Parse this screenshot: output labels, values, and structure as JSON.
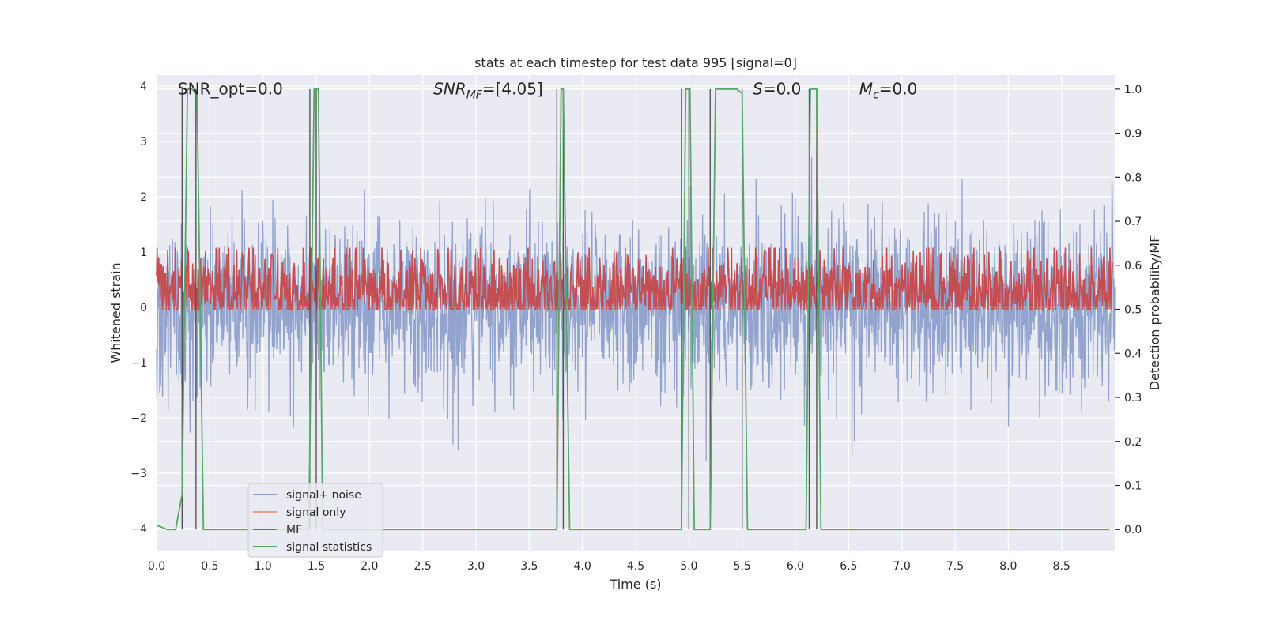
{
  "chart_data": {
    "type": "line",
    "title": "stats at each timestep for test data 995 [signal=0]",
    "xlabel": "Time (s)",
    "ylabel_left": "Whitened strain",
    "ylabel_right": "Detection probability/MF",
    "xlim": [
      0.0,
      9.0
    ],
    "ylim_left": [
      -4.4,
      4.2
    ],
    "ylim_right": [
      -0.048,
      1.032
    ],
    "x_ticks": [
      0.0,
      0.5,
      1.0,
      1.5,
      2.0,
      2.5,
      3.0,
      3.5,
      4.0,
      4.5,
      5.0,
      5.5,
      6.0,
      6.5,
      7.0,
      7.5,
      8.0,
      8.5
    ],
    "x_tick_labels": [
      "0.0",
      "0.5",
      "1.0",
      "1.5",
      "2.0",
      "2.5",
      "3.0",
      "3.5",
      "4.0",
      "4.5",
      "5.0",
      "5.5",
      "6.0",
      "6.5",
      "7.0",
      "7.5",
      "8.0",
      "8.5"
    ],
    "y_left_ticks": [
      -4,
      -3,
      -2,
      -1,
      0,
      1,
      2,
      3,
      4
    ],
    "y_left_tick_labels": [
      "−4",
      "−3",
      "−2",
      "−1",
      "0",
      "1",
      "2",
      "3",
      "4"
    ],
    "y_right_ticks": [
      0.0,
      0.1,
      0.2,
      0.3,
      0.4,
      0.5,
      0.6,
      0.7,
      0.8,
      0.9,
      1.0
    ],
    "y_right_tick_labels": [
      "0.0",
      "0.1",
      "0.2",
      "0.3",
      "0.4",
      "0.5",
      "0.6",
      "0.7",
      "0.8",
      "0.9",
      "1.0"
    ],
    "grid": true,
    "legend_position": "lower-left",
    "annotations": [
      {
        "text": "SNR_opt=0.0",
        "x": 0.2,
        "y": 3.95
      },
      {
        "text": "SNR_MF=[4.05]",
        "x": 2.6,
        "y": 3.95
      },
      {
        "text": "S=0.0",
        "x": 5.6,
        "y": 3.95
      },
      {
        "text": "M_c=0.0",
        "x": 6.6,
        "y": 3.95
      }
    ],
    "series": [
      {
        "name": "signal+ noise",
        "color": "#8da0cb",
        "axis": "left",
        "kind": "noise",
        "std": 0.78,
        "t_start": 0.0,
        "t_end": 9.0
      },
      {
        "name": "signal only",
        "color": "#e8a088",
        "axis": "left",
        "kind": "flat",
        "values": [
          0,
          0
        ]
      },
      {
        "name": "MF",
        "color": "#c44e52",
        "axis": "right",
        "kind": "mf",
        "mean": 0.54,
        "amplitude": 0.05
      },
      {
        "name": "signal statistics",
        "color": "#55a868",
        "axis": "right",
        "x": [
          0.0,
          0.1,
          0.18,
          0.24,
          0.26,
          0.29,
          0.33,
          0.38,
          0.44,
          0.5,
          1.0,
          1.43,
          1.48,
          1.52,
          1.56,
          1.6,
          2.0,
          3.0,
          3.76,
          3.8,
          3.82,
          3.88,
          4.0,
          4.5,
          4.93,
          4.97,
          5.01,
          5.05,
          5.2,
          5.25,
          5.45,
          5.5,
          5.55,
          6.1,
          6.14,
          6.17,
          6.2,
          6.24,
          7.0,
          8.0,
          8.95
        ],
        "y": [
          0.01,
          0.0,
          0.0,
          0.08,
          0.45,
          1.0,
          1.0,
          0.99,
          0.0,
          0.0,
          0.0,
          0.0,
          1.0,
          1.0,
          0.0,
          0.0,
          0.0,
          0.0,
          0.0,
          1.0,
          1.0,
          0.0,
          0.0,
          0.0,
          0.0,
          1.0,
          1.0,
          0.0,
          0.0,
          1.0,
          1.0,
          0.99,
          0.0,
          0.0,
          1.0,
          1.0,
          1.0,
          0.0,
          0.0,
          0.0,
          0.0
        ]
      }
    ],
    "vertical_markers": [
      0.24,
      0.37,
      1.44,
      1.5,
      3.76,
      3.82,
      4.93,
      5.0,
      5.2,
      5.5,
      6.13,
      6.2
    ]
  }
}
